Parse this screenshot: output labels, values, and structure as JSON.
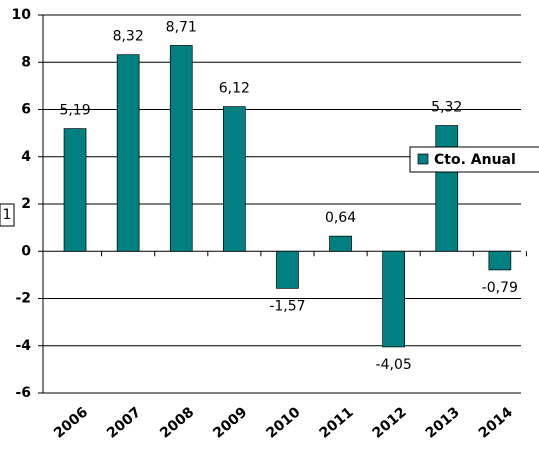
{
  "chart_data": {
    "type": "bar",
    "categories": [
      "2006",
      "2007",
      "2008",
      "2009",
      "2010",
      "2011",
      "2012",
      "2013",
      "2014"
    ],
    "series": [
      {
        "name": "Cto. Anual",
        "color": "#008080",
        "values": [
          5.19,
          8.32,
          8.71,
          6.12,
          -1.57,
          0.64,
          -4.05,
          5.32,
          -0.79
        ],
        "value_labels": [
          "5,19",
          "8,32",
          "8,71",
          "6,12",
          "-1,57",
          "0,64",
          "-4,05",
          "5,32",
          "-0,79"
        ]
      }
    ],
    "ylim": [
      -6,
      10
    ],
    "yticks": [
      -6,
      -4,
      -2,
      0,
      2,
      4,
      6,
      8,
      10
    ],
    "grid": true,
    "legend": "right",
    "annotation": "1"
  }
}
